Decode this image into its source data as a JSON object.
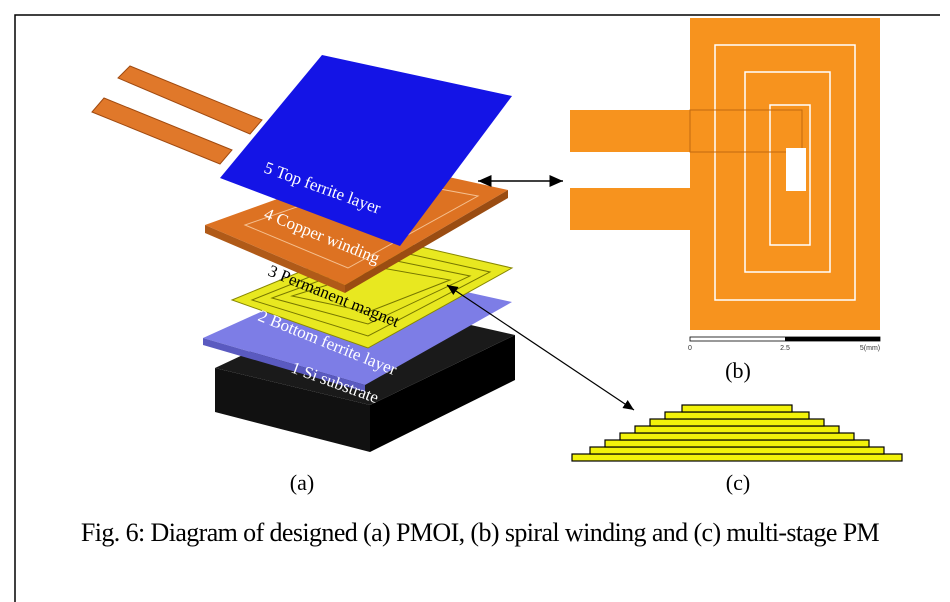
{
  "figure": {
    "panel_a": {
      "layers": [
        "5 Top ferrite layer",
        "4 Copper winding",
        "3 Permanent magnet",
        "2 Bottom ferrite layer",
        "1 Si substrate"
      ],
      "label": "(a)"
    },
    "panel_b": {
      "scale_labels": [
        "0",
        "2.5",
        "5(mm)"
      ],
      "label": "(b)"
    },
    "panel_c": {
      "label": "(c)"
    },
    "caption": "Fig. 6: Diagram of designed (a) PMOI, (b) spiral winding and (c) multi-stage PM"
  }
}
